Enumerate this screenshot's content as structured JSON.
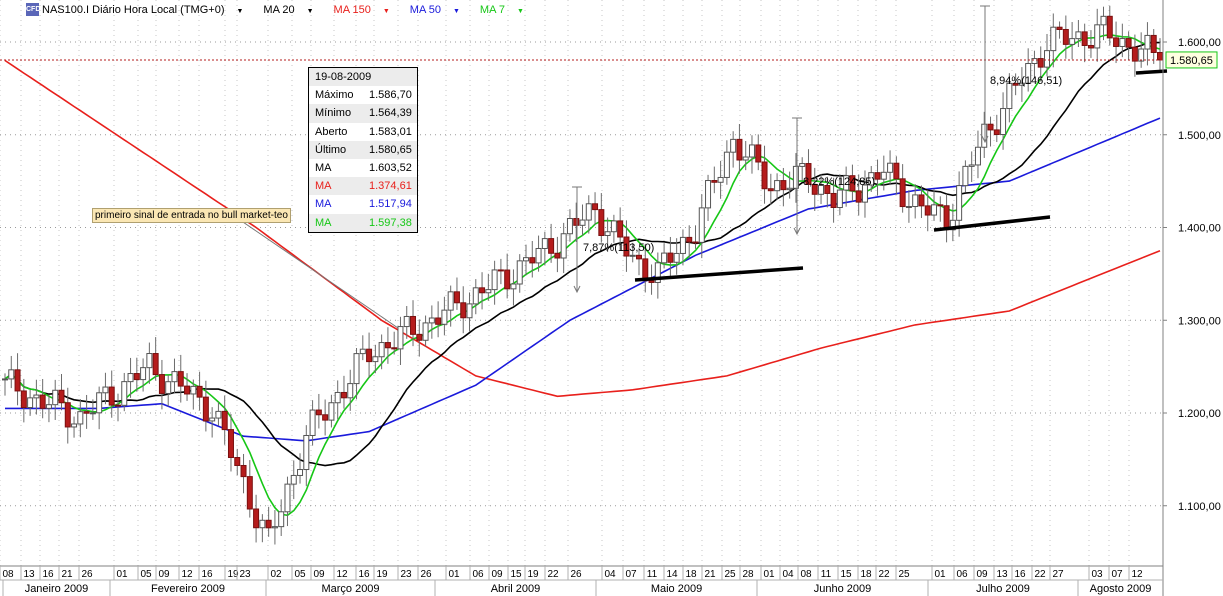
{
  "header": {
    "logo_text": "CFD",
    "symbol": "NAS100.I Diário Hora Local (TMG+0)",
    "indicators": [
      {
        "label": "MA 20",
        "color": "#000000"
      },
      {
        "label": "MA 150",
        "color": "#e8201c"
      },
      {
        "label": "MA 50",
        "color": "#1a1adb"
      },
      {
        "label": "MA 7",
        "color": "#16c716"
      }
    ]
  },
  "info_panel": {
    "date": "19-08-2009",
    "rows": [
      {
        "label": "Máximo",
        "value": "1.586,70",
        "color": "#000000"
      },
      {
        "label": "Mínimo",
        "value": "1.564,39",
        "color": "#000000"
      },
      {
        "label": "Aberto",
        "value": "1.583,01",
        "color": "#000000"
      },
      {
        "label": "Último",
        "value": "1.580,65",
        "color": "#000000"
      },
      {
        "label": "MA",
        "value": "1.603,52",
        "color": "#000000"
      },
      {
        "label": "MA",
        "value": "1.374,61",
        "color": "#e8201c"
      },
      {
        "label": "MA",
        "value": "1.517,94",
        "color": "#1a1adb"
      },
      {
        "label": "MA",
        "value": "1.597,38",
        "color": "#16c716"
      }
    ]
  },
  "annotation_text": "primeiro sinal de entrada no bull market-teo",
  "chart_data": {
    "type": "candlestick",
    "title": "NAS100.I Diário Hora Local (TMG+0)",
    "y_ticks": [
      1100,
      1200,
      1300,
      1400,
      1500,
      1600
    ],
    "y_tick_labels": [
      "1.100,00",
      "1.200,00",
      "1.300,00",
      "1.400,00",
      "1.500,00",
      "1.600,00"
    ],
    "ylim": [
      1030,
      1650
    ],
    "last_price": 1580.65,
    "last_price_label": "1.580,65",
    "x_day_labels": [
      "08",
      "13",
      "16",
      "21",
      "26",
      "01",
      "05",
      "09",
      "12",
      "16",
      "19",
      "23",
      "02",
      "05",
      "09",
      "12",
      "16",
      "19",
      "23",
      "26",
      "01",
      "06",
      "09",
      "15",
      "19",
      "22",
      "26",
      "04",
      "07",
      "11",
      "14",
      "18",
      "21",
      "25",
      "28",
      "01",
      "04",
      "08",
      "11",
      "15",
      "18",
      "22",
      "25",
      "01",
      "06",
      "09",
      "13",
      "16",
      "22",
      "27",
      "03",
      "07",
      "12"
    ],
    "x_months": [
      "Janeiro 2009",
      "Fevereiro 2009",
      "Março 2009",
      "Abril 2009",
      "Maio 2009",
      "Junho 2009",
      "Julho 2009",
      "Agosto 2009"
    ],
    "annotations": [
      {
        "text": "7,87%(113,50)"
      },
      {
        "text": "8,22%(124,85)"
      },
      {
        "text": "8,94%(146,51)"
      }
    ],
    "close_series_key_points": [
      {
        "date": "2009-01-08",
        "close": 1230
      },
      {
        "date": "2009-01-21",
        "close": 1190
      },
      {
        "date": "2009-02-09",
        "close": 1250
      },
      {
        "date": "2009-03-09",
        "close": 1060
      },
      {
        "date": "2009-03-26",
        "close": 1260
      },
      {
        "date": "2009-04-22",
        "close": 1370
      },
      {
        "date": "2009-05-04",
        "close": 1420
      },
      {
        "date": "2009-05-21",
        "close": 1350
      },
      {
        "date": "2009-06-04",
        "close": 1490
      },
      {
        "date": "2009-06-22",
        "close": 1430
      },
      {
        "date": "2009-07-09",
        "close": 1415
      },
      {
        "date": "2009-07-27",
        "close": 1600
      },
      {
        "date": "2009-08-19",
        "close": 1580.65
      }
    ],
    "moving_averages": [
      {
        "name": "MA 7",
        "color": "#16c716",
        "last": 1597.38
      },
      {
        "name": "MA 20",
        "color": "#000000",
        "last": 1603.52
      },
      {
        "name": "MA 50",
        "color": "#1a1adb",
        "last": 1517.94
      },
      {
        "name": "MA 150",
        "color": "#e8201c",
        "last": 1374.61
      }
    ]
  }
}
